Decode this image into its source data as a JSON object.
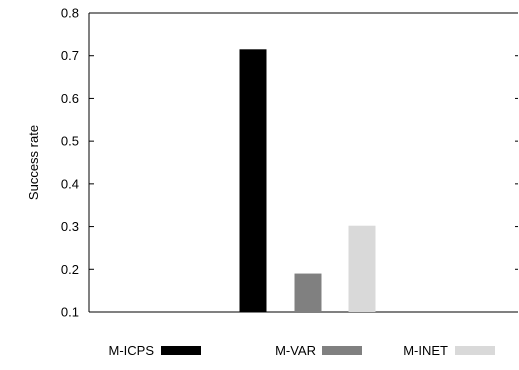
{
  "chart_data": {
    "type": "bar",
    "title": "",
    "xlabel": "",
    "ylabel": "Success rate",
    "ylim": [
      0.1,
      0.8
    ],
    "yticks": [
      "0.1",
      "0.2",
      "0.3",
      "0.4",
      "0.5",
      "0.6",
      "0.7",
      "0.8"
    ],
    "grid": false,
    "legend_position": "bottom",
    "series": [
      {
        "name": "M-ICPS",
        "value": 0.715,
        "color": "#000000"
      },
      {
        "name": "M-VAR",
        "value": 0.19,
        "color": "#808080"
      },
      {
        "name": "M-INET",
        "value": 0.302,
        "color": "#d9d9d9"
      }
    ]
  }
}
